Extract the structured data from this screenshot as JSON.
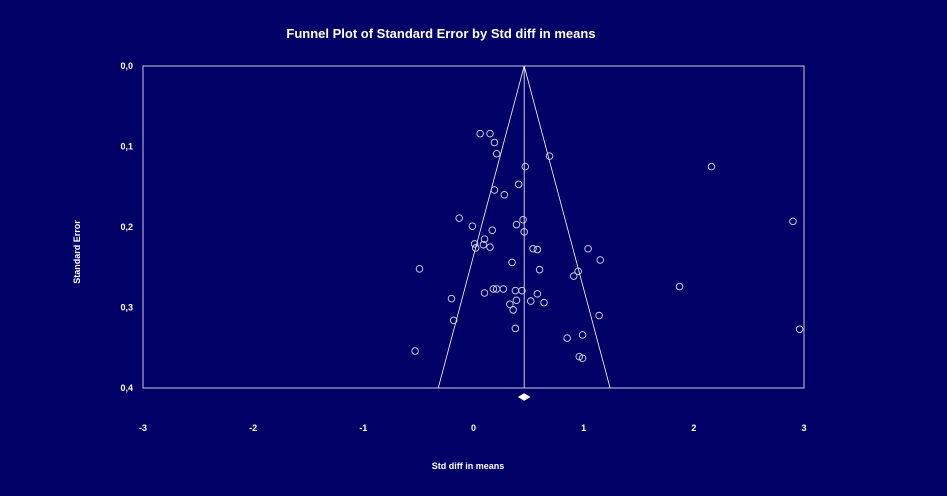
{
  "chart_data": {
    "type": "scatter",
    "title": "Funnel Plot of Standard Error by Std diff in means",
    "xlabel": "Std diff in means",
    "ylabel": "Standard Error",
    "xlim": [
      -3,
      3
    ],
    "ylim": [
      0.4,
      0.0
    ],
    "y_inverted": true,
    "x_ticks": [
      "-3",
      "-2",
      "-1",
      "0",
      "1",
      "2",
      "3"
    ],
    "y_ticks": [
      "0,0",
      "0,1",
      "0,2",
      "0,3",
      "0,4"
    ],
    "x_tick_values": [
      -3,
      -2,
      -1,
      0,
      1,
      2,
      3
    ],
    "y_tick_values": [
      0.0,
      0.1,
      0.2,
      0.3,
      0.4
    ],
    "grid": false,
    "funnel": {
      "apex": [
        0.46,
        0.0
      ],
      "base_left": [
        -0.32,
        0.4
      ],
      "base_right": [
        1.24,
        0.4
      ],
      "center_x": 0.46
    },
    "summary_marker": {
      "x": 0.46,
      "shape": "diamond"
    },
    "points": [
      {
        "x": 0.06,
        "y": 0.084
      },
      {
        "x": 0.15,
        "y": 0.084
      },
      {
        "x": 0.19,
        "y": 0.095
      },
      {
        "x": 0.21,
        "y": 0.109
      },
      {
        "x": 0.69,
        "y": 0.112
      },
      {
        "x": 0.47,
        "y": 0.125
      },
      {
        "x": 2.16,
        "y": 0.125
      },
      {
        "x": 0.41,
        "y": 0.147
      },
      {
        "x": 0.19,
        "y": 0.154
      },
      {
        "x": 0.28,
        "y": 0.16
      },
      {
        "x": -0.13,
        "y": 0.189
      },
      {
        "x": 0.45,
        "y": 0.191
      },
      {
        "x": 2.9,
        "y": 0.193
      },
      {
        "x": 0.39,
        "y": 0.197
      },
      {
        "x": -0.01,
        "y": 0.199
      },
      {
        "x": 0.17,
        "y": 0.204
      },
      {
        "x": 0.46,
        "y": 0.206
      },
      {
        "x": 0.1,
        "y": 0.215
      },
      {
        "x": 0.01,
        "y": 0.221
      },
      {
        "x": 0.09,
        "y": 0.222
      },
      {
        "x": 0.02,
        "y": 0.226
      },
      {
        "x": 0.15,
        "y": 0.225
      },
      {
        "x": 0.54,
        "y": 0.227
      },
      {
        "x": 0.58,
        "y": 0.228
      },
      {
        "x": 1.04,
        "y": 0.227
      },
      {
        "x": 1.15,
        "y": 0.241
      },
      {
        "x": 0.35,
        "y": 0.244
      },
      {
        "x": -0.49,
        "y": 0.252
      },
      {
        "x": 0.6,
        "y": 0.253
      },
      {
        "x": 0.95,
        "y": 0.255
      },
      {
        "x": 0.91,
        "y": 0.261
      },
      {
        "x": 1.87,
        "y": 0.274
      },
      {
        "x": 0.18,
        "y": 0.277
      },
      {
        "x": 0.21,
        "y": 0.277
      },
      {
        "x": 0.27,
        "y": 0.277
      },
      {
        "x": 0.38,
        "y": 0.279
      },
      {
        "x": 0.44,
        "y": 0.279
      },
      {
        "x": 0.1,
        "y": 0.282
      },
      {
        "x": 0.58,
        "y": 0.283
      },
      {
        "x": -0.2,
        "y": 0.289
      },
      {
        "x": 0.39,
        "y": 0.291
      },
      {
        "x": 0.52,
        "y": 0.292
      },
      {
        "x": 0.64,
        "y": 0.294
      },
      {
        "x": 0.33,
        "y": 0.296
      },
      {
        "x": 0.36,
        "y": 0.303
      },
      {
        "x": 1.14,
        "y": 0.31
      },
      {
        "x": -0.18,
        "y": 0.316
      },
      {
        "x": 0.38,
        "y": 0.326
      },
      {
        "x": 2.96,
        "y": 0.327
      },
      {
        "x": 0.99,
        "y": 0.334
      },
      {
        "x": 0.85,
        "y": 0.338
      },
      {
        "x": -0.53,
        "y": 0.354
      },
      {
        "x": 0.96,
        "y": 0.361
      },
      {
        "x": 0.99,
        "y": 0.363
      }
    ]
  }
}
